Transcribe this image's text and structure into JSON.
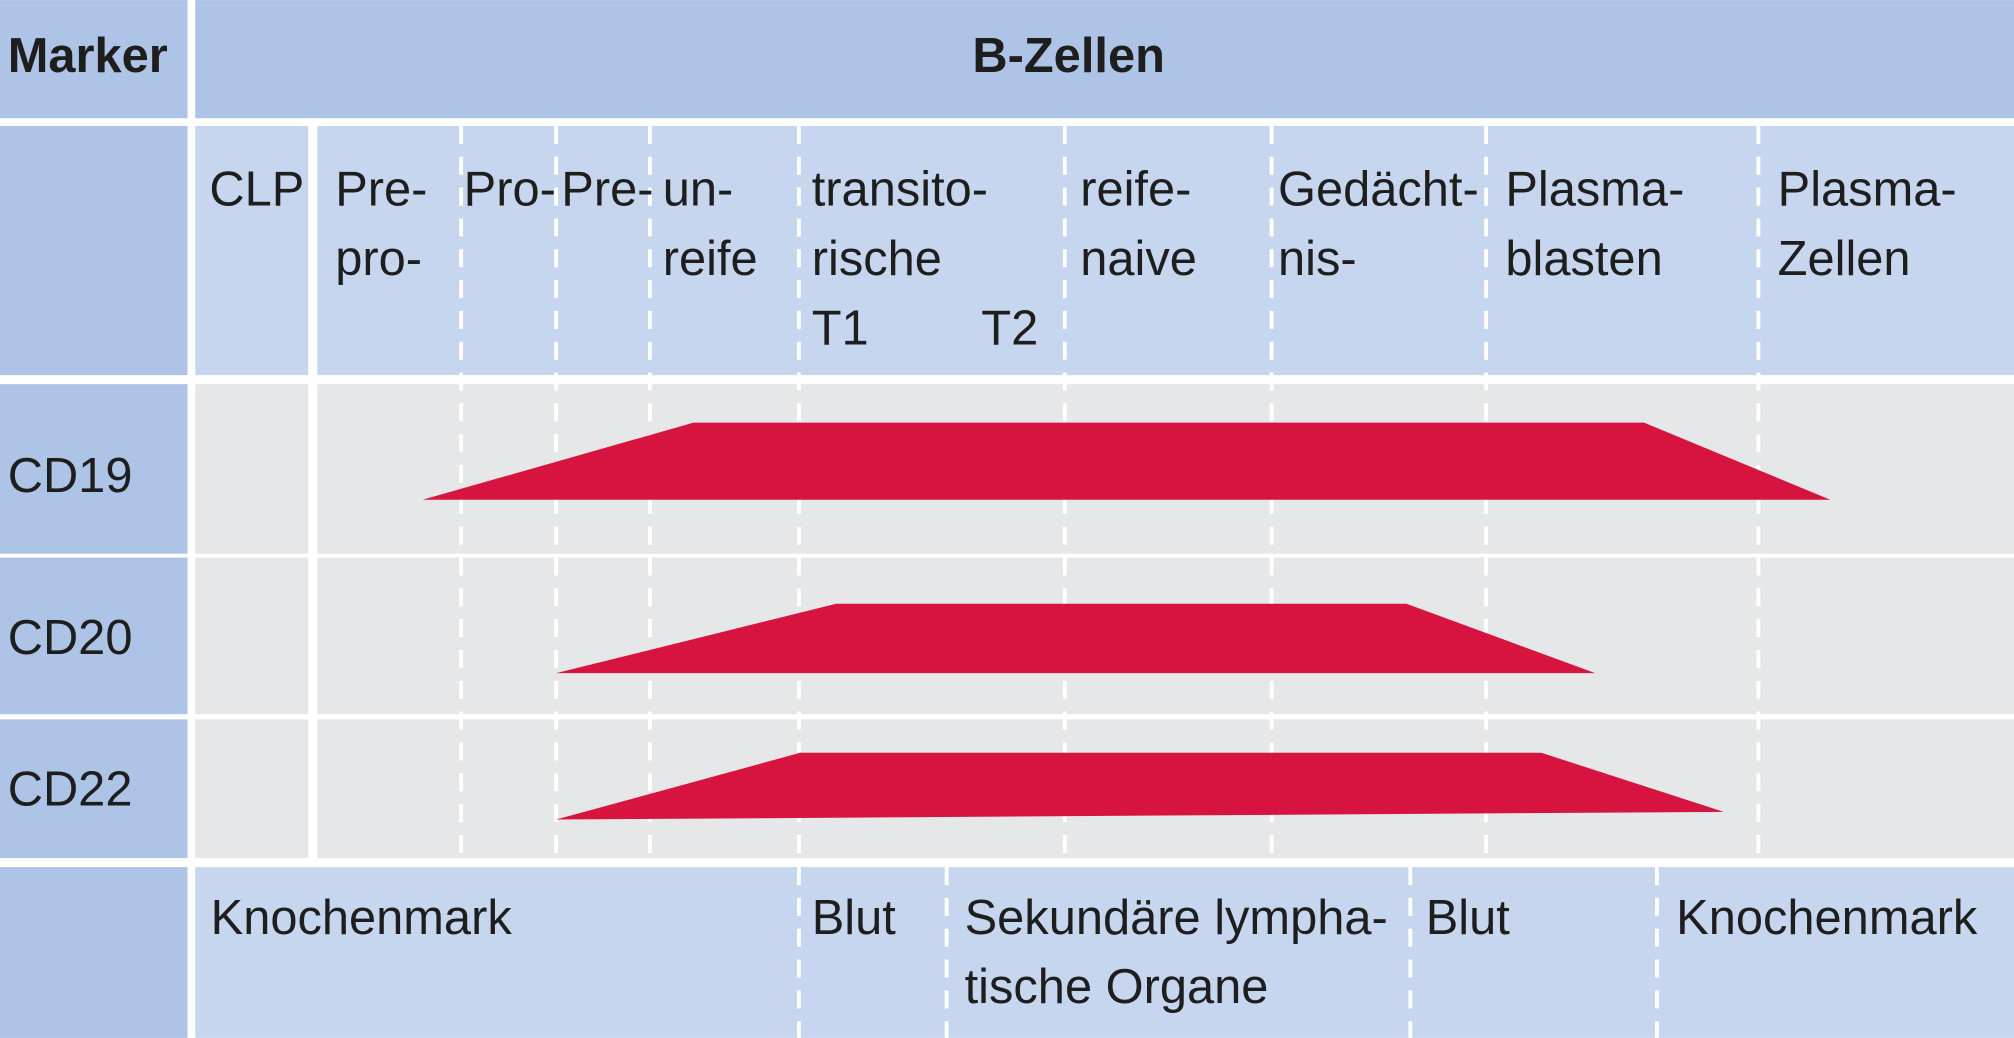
{
  "header": {
    "marker": "Marker",
    "title": "B-Zellen"
  },
  "stages": [
    [
      "CLP"
    ],
    [
      "Pre-",
      "pro-"
    ],
    [
      "Pro-"
    ],
    [
      "Pre-"
    ],
    [
      "un-",
      "reife"
    ],
    [
      "transito-",
      "rische",
      "T1"
    ],
    [
      "T2"
    ],
    [
      "reife-",
      "naive"
    ],
    [
      "Gedächt-",
      "nis-"
    ],
    [
      "Plasma-",
      "blasten"
    ],
    [
      "Plasma-",
      "Zellen"
    ]
  ],
  "markers": [
    "CD19",
    "CD20",
    "CD22"
  ],
  "locations": [
    [
      "Knochenmark"
    ],
    [
      "Blut"
    ],
    [
      "Sekundäre lympha-",
      "tische Organe"
    ],
    [
      "Blut"
    ],
    [
      "Knochenmark"
    ]
  ]
}
